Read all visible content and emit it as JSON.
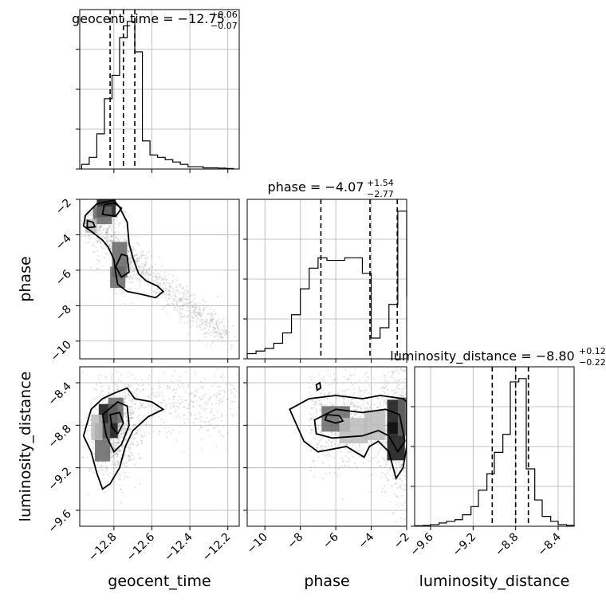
{
  "chart_data": {
    "type": "corner",
    "parameters": [
      {
        "name": "geocent_time",
        "label": "geocent_time",
        "median": -12.75,
        "plus": "+0.06",
        "minus": "−0.07",
        "title_main": "geocent_time = −12.75",
        "quantiles": [
          -12.82,
          -12.75,
          -12.69
        ],
        "range": [
          -12.98,
          -12.14
        ],
        "ticks": [
          -12.8,
          -12.6,
          -12.4,
          -12.2
        ],
        "tick_labels": [
          "−12.8",
          "−12.6",
          "−12.4",
          "−12.2"
        ]
      },
      {
        "name": "phase",
        "label": "phase",
        "median": -4.07,
        "plus": "+1.54",
        "minus": "−2.77",
        "title_main": "phase = −4.07",
        "quantiles": [
          -6.84,
          -4.07,
          -2.53
        ],
        "range": [
          -11.0,
          -2.0
        ],
        "ticks": [
          -10,
          -8,
          -6,
          -4,
          -2
        ],
        "tick_labels": [
          "−10",
          "−8",
          "−6",
          "−4",
          "−2"
        ]
      },
      {
        "name": "luminosity_distance",
        "label": "luminosity_distance",
        "median": -8.8,
        "plus": "+0.12",
        "minus": "−0.22",
        "title_main": "luminosity_distance = −8.80",
        "quantiles": [
          -9.02,
          -8.8,
          -8.68
        ],
        "range": [
          -9.75,
          -8.25
        ],
        "ticks": [
          -9.6,
          -9.2,
          -8.8,
          -8.4
        ],
        "tick_labels": [
          "−9.6",
          "−9.2",
          "−8.8",
          "−8.4"
        ]
      }
    ],
    "histograms": [
      {
        "param": "geocent_time",
        "bins": [
          -12.97,
          -12.93,
          -12.89,
          -12.85,
          -12.81,
          -12.77,
          -12.73,
          -12.69,
          -12.65,
          -12.61,
          -12.57,
          -12.53,
          -12.49,
          -12.45,
          -12.41,
          -12.37,
          -12.33,
          -12.29,
          -12.25,
          -12.21,
          -12.17
        ],
        "counts": [
          2,
          5,
          15,
          30,
          40,
          56,
          63,
          50,
          12,
          6,
          5,
          4,
          3,
          2,
          1,
          1,
          0.5,
          0.5,
          0.4,
          0.2
        ]
      },
      {
        "param": "phase",
        "bins": [
          -11.0,
          -10.5,
          -10.0,
          -9.5,
          -9.0,
          -8.5,
          -8.0,
          -7.5,
          -7.0,
          -6.5,
          -6.0,
          -5.5,
          -5.0,
          -4.5,
          -4.0,
          -3.5,
          -3.0,
          -2.5,
          -2.0
        ],
        "counts": [
          2,
          3,
          4,
          6,
          10,
          17,
          27,
          35,
          39,
          38,
          38,
          39,
          39,
          33,
          8,
          12,
          21,
          57,
          24
        ]
      },
      {
        "param": "luminosity_distance",
        "bins": [
          -9.75,
          -9.67,
          -9.6,
          -9.52,
          -9.45,
          -9.37,
          -9.3,
          -9.22,
          -9.15,
          -9.07,
          -9.0,
          -8.92,
          -8.85,
          -8.77,
          -8.7,
          -8.62,
          -8.55,
          -8.47,
          -8.4,
          -8.32,
          -8.25
        ],
        "counts": [
          0.3,
          0.5,
          1,
          2,
          3,
          4,
          7,
          12,
          22,
          32,
          45,
          56,
          88,
          90,
          35,
          16,
          6,
          3,
          1,
          0.5
        ]
      }
    ],
    "pairs": [
      {
        "x": "geocent_time",
        "y": "phase",
        "contours": [
          [
            [
              -12.89,
              -2.25
            ],
            [
              -12.8,
              -2.05
            ],
            [
              -12.77,
              -2.45
            ],
            [
              -12.73,
              -3.3
            ],
            [
              -12.72,
              -4.5
            ],
            [
              -12.7,
              -5.3
            ],
            [
              -12.67,
              -6.2
            ],
            [
              -12.63,
              -6.6
            ],
            [
              -12.57,
              -6.9
            ],
            [
              -12.54,
              -7.2
            ],
            [
              -12.58,
              -7.55
            ],
            [
              -12.66,
              -7.35
            ],
            [
              -12.73,
              -7.2
            ],
            [
              -12.78,
              -6.8
            ],
            [
              -12.79,
              -6.2
            ],
            [
              -12.8,
              -5.4
            ],
            [
              -12.83,
              -4.7
            ],
            [
              -12.86,
              -4.3
            ],
            [
              -12.92,
              -3.8
            ],
            [
              -12.96,
              -3.5
            ],
            [
              -12.95,
              -2.9
            ]
          ],
          [
            [
              -12.85,
              -2.3
            ],
            [
              -12.8,
              -2.2
            ],
            [
              -12.76,
              -2.5
            ],
            [
              -12.79,
              -2.95
            ],
            [
              -12.86,
              -2.85
            ]
          ],
          [
            [
              -12.76,
              -5.1
            ],
            [
              -12.73,
              -5.2
            ],
            [
              -12.72,
              -6.1
            ],
            [
              -12.76,
              -6.4
            ],
            [
              -12.79,
              -5.8
            ]
          ],
          [
            [
              -12.94,
              -3.2
            ],
            [
              -12.91,
              -3.3
            ],
            [
              -12.9,
              -3.55
            ],
            [
              -12.94,
              -3.6
            ]
          ]
        ]
      },
      {
        "x": "geocent_time",
        "y": "luminosity_distance",
        "contours": [
          [
            [
              -12.96,
              -8.9
            ],
            [
              -12.92,
              -8.65
            ],
            [
              -12.86,
              -8.55
            ],
            [
              -12.8,
              -8.5
            ],
            [
              -12.73,
              -8.45
            ],
            [
              -12.69,
              -8.55
            ],
            [
              -12.6,
              -8.58
            ],
            [
              -12.54,
              -8.65
            ],
            [
              -12.62,
              -8.72
            ],
            [
              -12.7,
              -8.85
            ],
            [
              -12.74,
              -9.0
            ],
            [
              -12.77,
              -9.2
            ],
            [
              -12.82,
              -9.35
            ],
            [
              -12.86,
              -9.4
            ],
            [
              -12.89,
              -9.25
            ],
            [
              -12.92,
              -9.05
            ]
          ],
          [
            [
              -12.86,
              -8.7
            ],
            [
              -12.78,
              -8.58
            ],
            [
              -12.73,
              -8.62
            ],
            [
              -12.72,
              -8.8
            ],
            [
              -12.76,
              -8.98
            ],
            [
              -12.8,
              -9.05
            ],
            [
              -12.84,
              -8.9
            ]
          ],
          [
            [
              -12.82,
              -8.7
            ],
            [
              -12.77,
              -8.68
            ],
            [
              -12.75,
              -8.78
            ],
            [
              -12.78,
              -8.88
            ],
            [
              -12.81,
              -8.82
            ]
          ]
        ]
      },
      {
        "x": "phase",
        "y": "luminosity_distance",
        "contours": [
          [
            [
              -8.6,
              -8.65
            ],
            [
              -7.5,
              -8.55
            ],
            [
              -6.0,
              -8.52
            ],
            [
              -4.5,
              -8.55
            ],
            [
              -3.5,
              -8.52
            ],
            [
              -2.2,
              -8.55
            ],
            [
              -2.0,
              -8.58
            ],
            [
              -2.0,
              -9.0
            ],
            [
              -2.2,
              -9.2
            ],
            [
              -2.6,
              -9.3
            ],
            [
              -3.0,
              -9.05
            ],
            [
              -3.6,
              -8.95
            ],
            [
              -4.1,
              -9.0
            ],
            [
              -4.4,
              -9.1
            ],
            [
              -5.4,
              -9.0
            ],
            [
              -7.0,
              -9.05
            ],
            [
              -7.8,
              -8.95
            ],
            [
              -8.2,
              -8.8
            ]
          ],
          [
            [
              -7.2,
              -8.75
            ],
            [
              -6.0,
              -8.65
            ],
            [
              -4.5,
              -8.68
            ],
            [
              -3.2,
              -8.65
            ],
            [
              -2.4,
              -8.7
            ],
            [
              -2.1,
              -8.95
            ],
            [
              -2.5,
              -9.05
            ],
            [
              -3.0,
              -8.9
            ],
            [
              -3.6,
              -8.85
            ],
            [
              -4.5,
              -8.9
            ],
            [
              -6.2,
              -8.92
            ],
            [
              -7.1,
              -8.88
            ]
          ],
          [
            [
              -6.5,
              -8.7
            ],
            [
              -5.8,
              -8.71
            ],
            [
              -5.6,
              -8.76
            ],
            [
              -6.0,
              -8.78
            ],
            [
              -6.6,
              -8.75
            ]
          ],
          [
            [
              -7.1,
              -8.42
            ],
            [
              -6.9,
              -8.4
            ],
            [
              -6.85,
              -8.45
            ],
            [
              -7.05,
              -8.47
            ]
          ]
        ]
      }
    ]
  }
}
